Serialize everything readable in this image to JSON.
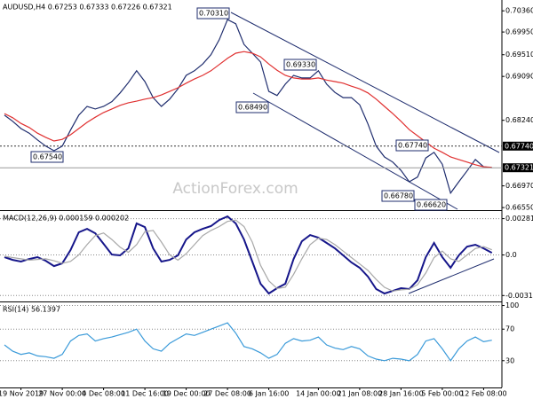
{
  "chart_data": [
    {
      "type": "line",
      "title": "AUDUSD,H4 0.67253 0.67333 0.67226 0.67321",
      "watermark": "ActionForex.com",
      "series": [
        {
          "color": "#1f2d6e",
          "values": [
            0.6834,
            0.6822,
            0.6808,
            0.6799,
            0.6786,
            0.6774,
            0.6765,
            0.6774,
            0.6805,
            0.6834,
            0.6851,
            0.6846,
            0.6851,
            0.686,
            0.6877,
            0.6897,
            0.692,
            0.6899,
            0.6868,
            0.6851,
            0.6865,
            0.6885,
            0.6911,
            0.692,
            0.6933,
            0.6951,
            0.698,
            0.7019,
            0.7011,
            0.6971,
            0.6954,
            0.6937,
            0.688,
            0.6872,
            0.6894,
            0.6911,
            0.6906,
            0.6906,
            0.692,
            0.6894,
            0.6878,
            0.6868,
            0.6868,
            0.6854,
            0.6817,
            0.6774,
            0.6753,
            0.6743,
            0.6727,
            0.6705,
            0.6714,
            0.6751,
            0.6762,
            0.6739,
            0.6683,
            0.6705,
            0.6726,
            0.6748,
            0.6734,
            0.67321
          ]
        },
        {
          "color": "#e03030",
          "values": [
            0.6837,
            0.6829,
            0.6818,
            0.681,
            0.6799,
            0.6791,
            0.6784,
            0.6787,
            0.6796,
            0.6808,
            0.682,
            0.683,
            0.6839,
            0.6846,
            0.6853,
            0.6858,
            0.6861,
            0.6865,
            0.6868,
            0.6873,
            0.688,
            0.6887,
            0.6896,
            0.6904,
            0.6911,
            0.692,
            0.6932,
            0.6944,
            0.6954,
            0.6957,
            0.6954,
            0.6947,
            0.6933,
            0.6921,
            0.6911,
            0.6906,
            0.6904,
            0.6904,
            0.6906,
            0.6902,
            0.6899,
            0.6896,
            0.689,
            0.6885,
            0.6877,
            0.6865,
            0.6851,
            0.6837,
            0.6822,
            0.6806,
            0.6794,
            0.6782,
            0.677,
            0.6762,
            0.6753,
            0.6748,
            0.6743,
            0.6738,
            0.6734,
            0.6733
          ]
        }
      ],
      "ylim": [
        0.665,
        0.7057
      ],
      "yticks": [
        {
          "value": 0.7036,
          "label": "0.70360"
        },
        {
          "value": 0.6995,
          "label": "0.69950"
        },
        {
          "value": 0.6951,
          "label": "0.69510"
        },
        {
          "value": 0.6909,
          "label": "0.69090"
        },
        {
          "value": 0.6824,
          "label": "0.68240"
        },
        {
          "value": 0.6697,
          "label": "0.66970"
        },
        {
          "value": 0.6655,
          "label": "0.66550"
        }
      ],
      "level": {
        "value": 0.6774,
        "label": "0.67740"
      },
      "last_price": {
        "value": 0.67321,
        "label": "0.67321"
      },
      "annotations": [
        "0.70310",
        "0.69330",
        "0.68490",
        "0.67540",
        "0.67740",
        "0.66780",
        "0.66620"
      ]
    },
    {
      "type": "line",
      "title": "MACD(12,26,9) 0.000159 0.000202",
      "series": [
        {
          "color": "#16168a",
          "values": [
            -0.00017,
            -0.00038,
            -0.00051,
            -0.00031,
            -0.00017,
            -0.00045,
            -0.00086,
            -0.00065,
            0.00038,
            0.00175,
            0.00202,
            0.00168,
            0.00086,
            3e-05,
            -3e-05,
            0.00051,
            0.00244,
            0.00216,
            0.00051,
            -0.00051,
            -0.00038,
            -3e-05,
            0.0012,
            0.00175,
            0.00202,
            0.00223,
            0.00271,
            0.00298,
            0.00244,
            0.0012,
            -0.00051,
            -0.00223,
            -0.00298,
            -0.00257,
            -0.00223,
            -0.00031,
            0.00106,
            0.00154,
            0.00134,
            0.00093,
            0.00051,
            -3e-05,
            -0.00058,
            -0.00099,
            -0.00168,
            -0.00264,
            -0.00298,
            -0.00278,
            -0.00257,
            -0.00264,
            -0.00196,
            -0.00017,
            0.00093,
            -0.00017,
            -0.00099,
            -3e-05,
            0.00065,
            0.00079,
            0.00051,
            0.00017
          ]
        },
        {
          "color": "#a8a8a8",
          "values": [
            -0.0001,
            -0.0002,
            -0.0003,
            -0.0004,
            -0.00035,
            -0.0003,
            -0.00045,
            -0.00065,
            -0.0005,
            0,
            0.0008,
            0.0015,
            0.0017,
            0.0012,
            0.0006,
            0.0002,
            0.0008,
            0.0018,
            0.0019,
            0.001,
            0,
            -0.0004,
            0.0001,
            0.0008,
            0.0015,
            0.0019,
            0.0022,
            0.0026,
            0.0027,
            0.0022,
            0.001,
            -0.0008,
            -0.002,
            -0.0026,
            -0.0025,
            -0.0015,
            -0.0003,
            0.0008,
            0.0013,
            0.0012,
            0.0008,
            0.0003,
            -0.0002,
            -0.0007,
            -0.0012,
            -0.0019,
            -0.0025,
            -0.0028,
            -0.0027,
            -0.00265,
            -0.0023,
            -0.0014,
            -0.0002,
            0.0003,
            -0.0003,
            -0.0005,
            0,
            0.0005,
            0.00065,
            0.0004
          ]
        }
      ],
      "ylim": [
        -0.0036,
        0.0034
      ],
      "yticks": [
        0.002811,
        {
          "value": 0,
          "label": "0.0"
        },
        -0.003141
      ]
    },
    {
      "type": "line",
      "title": "RSI(14) 56.1397",
      "categories": [
        null,
        null,
        "19 Nov 2019",
        null,
        null,
        null,
        null,
        "27 Nov 00:00",
        null,
        null,
        null,
        null,
        "4 Dec 08:00",
        null,
        null,
        null,
        null,
        "11 Dec 16:00",
        null,
        null,
        null,
        null,
        "19 Dec 00:00",
        null,
        null,
        null,
        null,
        "27 Dec 08:00",
        null,
        null,
        null,
        null,
        "6 Jan 16:00",
        null,
        null,
        null,
        null,
        null,
        "14 Jan 00:00",
        null,
        null,
        null,
        null,
        "21 Jan 08:00",
        null,
        null,
        null,
        null,
        "28 Jan 16:00",
        null,
        null,
        null,
        null,
        "5 Feb 00:00",
        null,
        null,
        null,
        null,
        "12 Feb 08:00",
        null
      ],
      "series": [
        {
          "color": "#3a9ad9",
          "values": [
            50,
            42,
            38,
            40,
            36,
            35,
            33,
            38,
            55,
            62,
            64,
            55,
            58,
            60,
            63,
            66,
            70,
            55,
            45,
            42,
            52,
            58,
            64,
            62,
            66,
            70,
            74,
            78,
            65,
            48,
            45,
            40,
            33,
            38,
            52,
            58,
            55,
            56,
            60,
            50,
            46,
            44,
            48,
            45,
            36,
            32,
            30,
            33,
            32,
            30,
            38,
            55,
            58,
            45,
            30,
            45,
            55,
            60,
            54,
            56
          ]
        }
      ],
      "ylim": [
        -4,
        104
      ],
      "yticks": [
        100,
        70,
        30
      ]
    }
  ]
}
